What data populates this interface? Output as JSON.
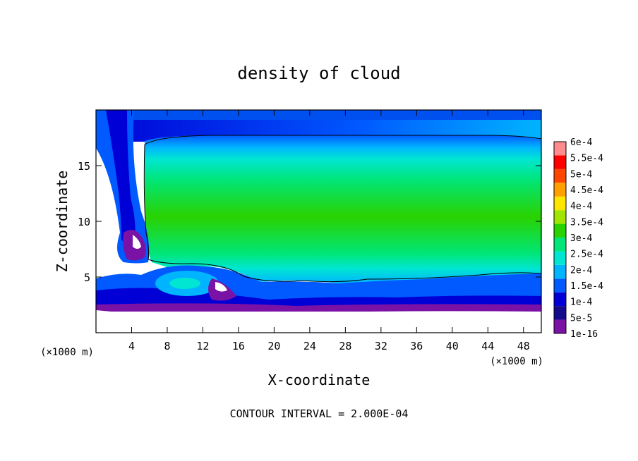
{
  "chart_data": {
    "type": "heatmap",
    "title": "density of cloud",
    "xlabel": "X-coordinate",
    "ylabel": "Z-coordinate",
    "x_unit": "(×1000 m)",
    "z_unit": "(×1000 m)",
    "xlim": [
      0,
      50
    ],
    "ylim": [
      0,
      20
    ],
    "x_ticks": [
      4,
      8,
      12,
      16,
      20,
      24,
      28,
      32,
      36,
      40,
      44,
      48
    ],
    "y_ticks": [
      5,
      10,
      15
    ],
    "footer": "CONTOUR INTERVAL = 2.000E-04",
    "colorbar": {
      "levels": [
        "1e-16",
        "5e-5",
        "1e-4",
        "1.5e-4",
        "2e-4",
        "2.5e-4",
        "3e-4",
        "3.5e-4",
        "4e-4",
        "4.5e-4",
        "5e-4",
        "5.5e-4",
        "6e-4"
      ],
      "colors": [
        "#7a12a6",
        "#140a8c",
        "#0000d6",
        "#005aff",
        "#00b4ff",
        "#00e6d2",
        "#00e678",
        "#2ad200",
        "#a0e600",
        "#ffe600",
        "#ffa000",
        "#ff4600",
        "#ff0000",
        "#ff8c8c"
      ]
    }
  }
}
